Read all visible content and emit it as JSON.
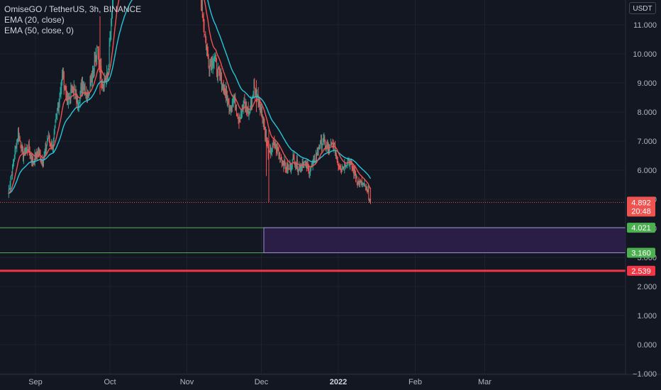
{
  "legend": {
    "symbol": "OmiseGO / TetherUS, 3h, BINANCE",
    "ema20": "EMA (20, close)",
    "ema50": "EMA (50, close, 0)"
  },
  "currency": "USDT",
  "colors": {
    "background": "#131722",
    "candle_up": "#26a69a",
    "candle_down": "#ef5350",
    "ema20": "#ef5350",
    "ema50": "#26c6da",
    "support_line": "#4caf50",
    "target_line": "#f23645",
    "zone_fill": "#2e1f4a",
    "zone_border": "#9c8bd4"
  },
  "chart_data": {
    "type": "candlestick",
    "ylim": [
      -1.0,
      12.0
    ],
    "y_ticks": [
      "11.000",
      "10.000",
      "9.000",
      "8.000",
      "7.000",
      "6.000",
      "5.000",
      "4.000",
      "3.000",
      "2.000",
      "1.000",
      "0.000",
      "−1.000"
    ],
    "x_ticks": [
      {
        "label": "Sep",
        "date": "2021-09-01",
        "bold": false
      },
      {
        "label": "Oct",
        "date": "2021-10-01",
        "bold": false
      },
      {
        "label": "Nov",
        "date": "2021-11-01",
        "bold": false
      },
      {
        "label": "Dec",
        "date": "2021-12-01",
        "bold": false
      },
      {
        "label": "2022",
        "date": "2022-01-01",
        "bold": true
      },
      {
        "label": "Feb",
        "date": "2022-02-01",
        "bold": false
      },
      {
        "label": "Mar",
        "date": "2022-03-01",
        "bold": false
      }
    ],
    "price_path": [
      [
        "2021-08-21",
        5.2
      ],
      [
        "2021-08-23",
        6.2
      ],
      [
        "2021-08-25",
        7.3
      ],
      [
        "2021-08-27",
        6.5
      ],
      [
        "2021-08-29",
        6.8
      ],
      [
        "2021-08-31",
        6.3
      ],
      [
        "2021-09-02",
        6.6
      ],
      [
        "2021-09-04",
        6.3
      ],
      [
        "2021-09-06",
        7.1
      ],
      [
        "2021-09-08",
        6.8
      ],
      [
        "2021-09-10",
        8.2
      ],
      [
        "2021-09-12",
        9.3
      ],
      [
        "2021-09-14",
        8.3
      ],
      [
        "2021-09-16",
        8.9
      ],
      [
        "2021-09-18",
        8.3
      ],
      [
        "2021-09-20",
        9.0
      ],
      [
        "2021-09-22",
        8.6
      ],
      [
        "2021-09-24",
        9.4
      ],
      [
        "2021-09-26",
        10.1
      ],
      [
        "2021-09-28",
        9.0
      ],
      [
        "2021-09-30",
        9.2
      ],
      [
        "2021-10-02",
        11.6
      ],
      [
        "2021-10-03",
        12.8
      ],
      [
        "2021-11-06",
        12.5
      ],
      [
        "2021-11-08",
        10.8
      ],
      [
        "2021-11-10",
        9.6
      ],
      [
        "2021-11-12",
        9.9
      ],
      [
        "2021-11-14",
        9.2
      ],
      [
        "2021-11-16",
        8.8
      ],
      [
        "2021-11-18",
        8.2
      ],
      [
        "2021-11-20",
        8.4
      ],
      [
        "2021-11-22",
        7.8
      ],
      [
        "2021-11-24",
        8.3
      ],
      [
        "2021-11-26",
        7.9
      ],
      [
        "2021-11-28",
        8.8
      ],
      [
        "2021-11-30",
        8.4
      ],
      [
        "2021-12-02",
        7.6
      ],
      [
        "2021-12-04",
        6.5
      ],
      [
        "2021-12-06",
        6.9
      ],
      [
        "2021-12-08",
        6.6
      ],
      [
        "2021-12-10",
        6.2
      ],
      [
        "2021-12-12",
        6.0
      ],
      [
        "2021-12-14",
        6.4
      ],
      [
        "2021-12-16",
        6.1
      ],
      [
        "2021-12-18",
        6.3
      ],
      [
        "2021-12-20",
        6.0
      ],
      [
        "2021-12-22",
        6.2
      ],
      [
        "2021-12-24",
        6.8
      ],
      [
        "2021-12-26",
        7.0
      ],
      [
        "2021-12-28",
        6.7
      ],
      [
        "2021-12-30",
        6.9
      ],
      [
        "2022-01-01",
        6.2
      ],
      [
        "2022-01-03",
        6.1
      ],
      [
        "2022-01-05",
        6.4
      ],
      [
        "2022-01-07",
        6.0
      ],
      [
        "2022-01-09",
        5.6
      ],
      [
        "2022-01-11",
        5.5
      ],
      [
        "2022-01-13",
        5.2
      ],
      [
        "2022-01-14",
        4.9
      ]
    ],
    "wicks": [
      {
        "date": "2021-12-04",
        "high": 7.4,
        "low": 4.9
      },
      {
        "date": "2021-12-03",
        "high": 7.0,
        "low": 5.8
      },
      {
        "date": "2021-11-29",
        "high": 9.1,
        "low": 8.0
      },
      {
        "date": "2021-09-27",
        "high": 11.3,
        "low": 8.6
      },
      {
        "date": "2022-01-14",
        "high": 5.4,
        "low": 4.85
      }
    ],
    "last_price": {
      "value": 4.892,
      "label": "4.892",
      "countdown": "20:48"
    },
    "levels": [
      {
        "name": "zone-top",
        "value": 4.021,
        "label": "4.021",
        "start": "2021-08-20"
      },
      {
        "name": "zone-bottom",
        "value": 3.16,
        "label": "3.160",
        "start": "2021-08-20"
      },
      {
        "name": "target",
        "value": 2.539,
        "label": "2.539",
        "start": "2021-08-20"
      }
    ],
    "zone": {
      "from": "2021-12-02",
      "top": 4.021,
      "bottom": 3.16
    }
  }
}
